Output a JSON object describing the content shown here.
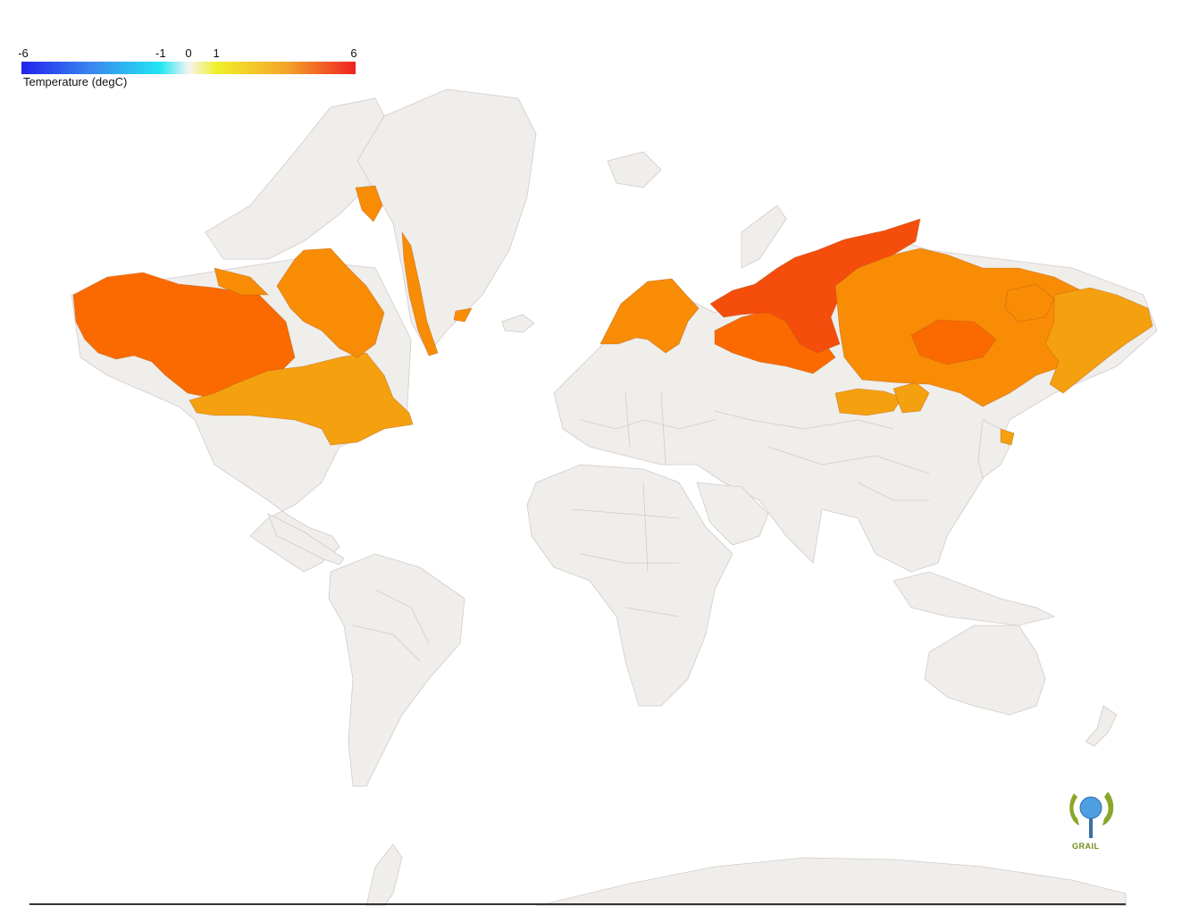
{
  "legend": {
    "title": "Temperature (degC)",
    "min": -6,
    "max": 6,
    "ticks": [
      {
        "value": -6,
        "label": "-6"
      },
      {
        "value": -1,
        "label": "-1"
      },
      {
        "value": 0,
        "label": "0"
      },
      {
        "value": 1,
        "label": "1"
      },
      {
        "value": 6,
        "label": "6"
      }
    ],
    "gradient_stops": [
      {
        "value": -6,
        "color": "#2222ee"
      },
      {
        "value": -3.5,
        "color": "#3a86f0"
      },
      {
        "value": -1,
        "color": "#22e6f2"
      },
      {
        "value": 0,
        "color": "#f4f4f4"
      },
      {
        "value": 1,
        "color": "#f0f02a"
      },
      {
        "value": 3.5,
        "color": "#f4a52a"
      },
      {
        "value": 6,
        "color": "#ee2222"
      }
    ]
  },
  "colors": {
    "land": "#efeeea",
    "border": "#d4c9d0",
    "ocean": "#ffffff",
    "warm_light": "#f5a00f",
    "warm_mid": "#f98c05",
    "warm_strong": "#fb6a00",
    "warm_red": "#f54d0c"
  },
  "regions": [
    {
      "name": "Alaska & Western Canada",
      "anomaly": 5.0,
      "color": "#fb6a00"
    },
    {
      "name": "Southern Canada",
      "anomaly": 4.0,
      "color": "#f5a00f"
    },
    {
      "name": "Canadian Arctic Archipelago",
      "anomaly": 4.5,
      "color": "#f98c05"
    },
    {
      "name": "Greenland coasts",
      "anomaly": 4.5,
      "color": "#f98c05"
    },
    {
      "name": "Scandinavia",
      "anomaly": 4.0,
      "color": "#f98c05"
    },
    {
      "name": "Northern Russia",
      "anomaly": 5.0,
      "color": "#fb6a00"
    },
    {
      "name": "Taymyr / Central Siberia",
      "anomaly": 5.5,
      "color": "#f54d0c"
    },
    {
      "name": "Siberia",
      "anomaly": 4.5,
      "color": "#f98c05"
    },
    {
      "name": "Eastern Siberia",
      "anomaly": 4.0,
      "color": "#f5a00f"
    }
  ],
  "logo": {
    "text": "GRAIL"
  }
}
